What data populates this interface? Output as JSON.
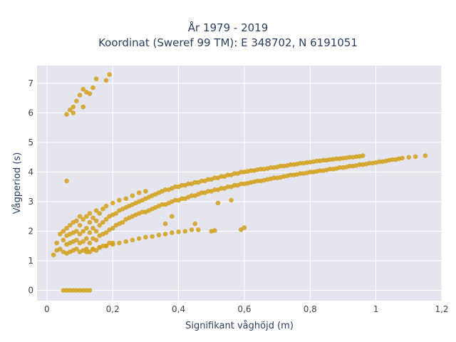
{
  "chart_data": {
    "type": "scatter",
    "title_lines": [
      "År 1979 - 2019",
      "Koordinat (Sweref 99 TM): E 348702, N 6191051"
    ],
    "xlabel": "Signifikant våghöjd (m)",
    "ylabel": "Vågperiod (s)",
    "xlim": [
      -0.03,
      1.2
    ],
    "ylim": [
      -0.35,
      7.6
    ],
    "x_ticks": [
      0,
      0.2,
      0.4,
      0.6,
      0.8,
      1,
      1.2
    ],
    "x_tick_labels": [
      "0",
      "0,2",
      "0,4",
      "0,6",
      "0,8",
      "1",
      "1,2"
    ],
    "y_ticks": [
      0,
      1,
      2,
      3,
      4,
      5,
      6,
      7
    ],
    "y_tick_labels": [
      "0",
      "1",
      "2",
      "3",
      "4",
      "5",
      "6",
      "7"
    ],
    "grid": true,
    "marker_color": "#D4A017",
    "plot_background": "#E5E5EF",
    "points": [
      [
        0.05,
        0
      ],
      [
        0.06,
        0
      ],
      [
        0.07,
        0
      ],
      [
        0.08,
        0
      ],
      [
        0.09,
        0
      ],
      [
        0.1,
        0
      ],
      [
        0.11,
        0
      ],
      [
        0.12,
        0
      ],
      [
        0.13,
        0
      ],
      [
        0.06,
        5.95
      ],
      [
        0.07,
        6.1
      ],
      [
        0.08,
        6.2
      ],
      [
        0.09,
        6.4
      ],
      [
        0.1,
        6.6
      ],
      [
        0.11,
        6.8
      ],
      [
        0.12,
        6.7
      ],
      [
        0.13,
        6.65
      ],
      [
        0.14,
        6.85
      ],
      [
        0.15,
        7.15
      ],
      [
        0.18,
        7.1
      ],
      [
        0.19,
        7.3
      ],
      [
        0.08,
        6.0
      ],
      [
        0.11,
        6.2
      ],
      [
        0.06,
        3.7
      ],
      [
        0.02,
        1.2
      ],
      [
        0.03,
        1.35
      ],
      [
        0.03,
        1.6
      ],
      [
        0.04,
        1.4
      ],
      [
        0.04,
        1.9
      ],
      [
        0.05,
        1.3
      ],
      [
        0.05,
        1.7
      ],
      [
        0.05,
        2.0
      ],
      [
        0.06,
        1.25
      ],
      [
        0.06,
        1.55
      ],
      [
        0.06,
        1.85
      ],
      [
        0.06,
        2.1
      ],
      [
        0.07,
        1.3
      ],
      [
        0.07,
        1.6
      ],
      [
        0.07,
        1.9
      ],
      [
        0.07,
        2.2
      ],
      [
        0.08,
        1.35
      ],
      [
        0.08,
        1.65
      ],
      [
        0.08,
        1.95
      ],
      [
        0.08,
        2.3
      ],
      [
        0.09,
        1.4
      ],
      [
        0.09,
        1.7
      ],
      [
        0.09,
        2.0
      ],
      [
        0.09,
        2.35
      ],
      [
        0.1,
        1.3
      ],
      [
        0.1,
        1.6
      ],
      [
        0.1,
        1.9
      ],
      [
        0.1,
        2.2
      ],
      [
        0.1,
        2.5
      ],
      [
        0.11,
        1.35
      ],
      [
        0.11,
        1.65
      ],
      [
        0.11,
        2.0
      ],
      [
        0.11,
        2.4
      ],
      [
        0.12,
        1.4
      ],
      [
        0.12,
        1.75
      ],
      [
        0.12,
        2.1
      ],
      [
        0.12,
        2.5
      ],
      [
        0.13,
        1.3
      ],
      [
        0.13,
        1.6
      ],
      [
        0.13,
        1.95
      ],
      [
        0.13,
        2.3
      ],
      [
        0.13,
        2.6
      ],
      [
        0.14,
        1.4
      ],
      [
        0.14,
        1.75
      ],
      [
        0.14,
        2.1
      ],
      [
        0.14,
        2.45
      ],
      [
        0.15,
        1.35
      ],
      [
        0.15,
        1.7
      ],
      [
        0.15,
        2.0
      ],
      [
        0.15,
        2.35
      ],
      [
        0.15,
        2.7
      ],
      [
        0.16,
        1.45
      ],
      [
        0.16,
        1.85
      ],
      [
        0.16,
        2.2
      ],
      [
        0.16,
        2.6
      ],
      [
        0.17,
        1.5
      ],
      [
        0.17,
        1.9
      ],
      [
        0.17,
        2.3
      ],
      [
        0.17,
        2.75
      ],
      [
        0.18,
        1.5
      ],
      [
        0.18,
        1.95
      ],
      [
        0.18,
        2.4
      ],
      [
        0.18,
        2.85
      ],
      [
        0.19,
        1.6
      ],
      [
        0.19,
        2.05
      ],
      [
        0.19,
        2.5
      ],
      [
        0.2,
        1.6
      ],
      [
        0.2,
        2.1
      ],
      [
        0.2,
        2.55
      ],
      [
        0.2,
        2.95
      ],
      [
        0.21,
        2.2
      ],
      [
        0.21,
        2.6
      ],
      [
        0.22,
        2.25
      ],
      [
        0.22,
        2.7
      ],
      [
        0.22,
        3.05
      ],
      [
        0.23,
        2.3
      ],
      [
        0.23,
        2.75
      ],
      [
        0.24,
        2.4
      ],
      [
        0.24,
        2.8
      ],
      [
        0.24,
        3.1
      ],
      [
        0.25,
        2.45
      ],
      [
        0.25,
        2.85
      ],
      [
        0.26,
        2.5
      ],
      [
        0.26,
        2.9
      ],
      [
        0.26,
        3.2
      ],
      [
        0.27,
        2.55
      ],
      [
        0.27,
        2.95
      ],
      [
        0.28,
        2.6
      ],
      [
        0.28,
        3.0
      ],
      [
        0.28,
        3.3
      ],
      [
        0.29,
        2.65
      ],
      [
        0.29,
        3.05
      ],
      [
        0.3,
        2.65
      ],
      [
        0.3,
        3.1
      ],
      [
        0.3,
        3.35
      ],
      [
        0.31,
        2.7
      ],
      [
        0.31,
        3.15
      ],
      [
        0.32,
        2.75
      ],
      [
        0.32,
        3.2
      ],
      [
        0.33,
        2.8
      ],
      [
        0.33,
        3.25
      ],
      [
        0.34,
        2.85
      ],
      [
        0.34,
        3.3
      ],
      [
        0.35,
        2.9
      ],
      [
        0.35,
        3.35
      ],
      [
        0.36,
        2.9
      ],
      [
        0.36,
        3.4
      ],
      [
        0.37,
        2.95
      ],
      [
        0.37,
        3.4
      ],
      [
        0.38,
        3.0
      ],
      [
        0.38,
        3.45
      ],
      [
        0.39,
        3.05
      ],
      [
        0.39,
        3.5
      ],
      [
        0.4,
        3.05
      ],
      [
        0.4,
        3.5
      ],
      [
        0.41,
        3.1
      ],
      [
        0.41,
        3.55
      ],
      [
        0.42,
        3.1
      ],
      [
        0.42,
        3.55
      ],
      [
        0.43,
        3.15
      ],
      [
        0.43,
        3.6
      ],
      [
        0.44,
        3.2
      ],
      [
        0.44,
        3.6
      ],
      [
        0.45,
        3.2
      ],
      [
        0.45,
        3.65
      ],
      [
        0.46,
        3.25
      ],
      [
        0.46,
        3.65
      ],
      [
        0.47,
        3.3
      ],
      [
        0.47,
        3.7
      ],
      [
        0.48,
        3.3
      ],
      [
        0.48,
        3.7
      ],
      [
        0.49,
        3.35
      ],
      [
        0.49,
        3.75
      ],
      [
        0.5,
        3.35
      ],
      [
        0.5,
        3.75
      ],
      [
        0.51,
        3.4
      ],
      [
        0.51,
        3.8
      ],
      [
        0.52,
        3.4
      ],
      [
        0.52,
        3.8
      ],
      [
        0.53,
        3.45
      ],
      [
        0.53,
        3.85
      ],
      [
        0.54,
        3.45
      ],
      [
        0.54,
        3.85
      ],
      [
        0.55,
        3.5
      ],
      [
        0.55,
        3.9
      ],
      [
        0.56,
        3.5
      ],
      [
        0.56,
        3.9
      ],
      [
        0.57,
        3.55
      ],
      [
        0.57,
        3.95
      ],
      [
        0.58,
        3.55
      ],
      [
        0.58,
        3.95
      ],
      [
        0.59,
        3.6
      ],
      [
        0.59,
        4.0
      ],
      [
        0.6,
        3.6
      ],
      [
        0.6,
        4.0
      ],
      [
        0.61,
        3.62
      ],
      [
        0.61,
        4.02
      ],
      [
        0.62,
        3.65
      ],
      [
        0.62,
        4.05
      ],
      [
        0.63,
        3.67
      ],
      [
        0.63,
        4.05
      ],
      [
        0.64,
        3.7
      ],
      [
        0.64,
        4.08
      ],
      [
        0.65,
        3.7
      ],
      [
        0.65,
        4.1
      ],
      [
        0.66,
        3.72
      ],
      [
        0.66,
        4.1
      ],
      [
        0.67,
        3.75
      ],
      [
        0.67,
        4.12
      ],
      [
        0.68,
        3.77
      ],
      [
        0.68,
        4.15
      ],
      [
        0.69,
        3.8
      ],
      [
        0.69,
        4.15
      ],
      [
        0.7,
        3.8
      ],
      [
        0.7,
        4.17
      ],
      [
        0.71,
        3.82
      ],
      [
        0.71,
        4.2
      ],
      [
        0.72,
        3.85
      ],
      [
        0.72,
        4.2
      ],
      [
        0.73,
        3.87
      ],
      [
        0.73,
        4.22
      ],
      [
        0.74,
        3.9
      ],
      [
        0.74,
        4.25
      ],
      [
        0.75,
        3.9
      ],
      [
        0.75,
        4.25
      ],
      [
        0.76,
        3.92
      ],
      [
        0.76,
        4.27
      ],
      [
        0.77,
        3.95
      ],
      [
        0.77,
        4.3
      ],
      [
        0.78,
        3.95
      ],
      [
        0.78,
        4.3
      ],
      [
        0.79,
        3.97
      ],
      [
        0.79,
        4.32
      ],
      [
        0.8,
        4.0
      ],
      [
        0.8,
        4.33
      ],
      [
        0.81,
        4.0
      ],
      [
        0.81,
        4.35
      ],
      [
        0.82,
        4.02
      ],
      [
        0.82,
        4.37
      ],
      [
        0.83,
        4.05
      ],
      [
        0.83,
        4.38
      ],
      [
        0.84,
        4.05
      ],
      [
        0.84,
        4.4
      ],
      [
        0.85,
        4.07
      ],
      [
        0.85,
        4.4
      ],
      [
        0.86,
        4.1
      ],
      [
        0.86,
        4.42
      ],
      [
        0.87,
        4.1
      ],
      [
        0.87,
        4.43
      ],
      [
        0.88,
        4.12
      ],
      [
        0.88,
        4.45
      ],
      [
        0.89,
        4.15
      ],
      [
        0.89,
        4.45
      ],
      [
        0.9,
        4.15
      ],
      [
        0.9,
        4.47
      ],
      [
        0.91,
        4.17
      ],
      [
        0.91,
        4.48
      ],
      [
        0.92,
        4.2
      ],
      [
        0.92,
        4.5
      ],
      [
        0.93,
        4.2
      ],
      [
        0.93,
        4.5
      ],
      [
        0.94,
        4.22
      ],
      [
        0.94,
        4.52
      ],
      [
        0.95,
        4.25
      ],
      [
        0.95,
        4.53
      ],
      [
        0.96,
        4.25
      ],
      [
        0.96,
        4.55
      ],
      [
        0.97,
        4.27
      ],
      [
        0.98,
        4.3
      ],
      [
        0.99,
        4.3
      ],
      [
        1.0,
        4.32
      ],
      [
        1.01,
        4.35
      ],
      [
        1.02,
        4.35
      ],
      [
        1.03,
        4.37
      ],
      [
        1.04,
        4.4
      ],
      [
        1.05,
        4.42
      ],
      [
        1.06,
        4.42
      ],
      [
        1.07,
        4.45
      ],
      [
        1.08,
        4.47
      ],
      [
        1.1,
        4.5
      ],
      [
        1.12,
        4.52
      ],
      [
        1.15,
        4.55
      ],
      [
        0.12,
        1.3
      ],
      [
        0.14,
        1.38
      ],
      [
        0.16,
        1.45
      ],
      [
        0.18,
        1.5
      ],
      [
        0.2,
        1.55
      ],
      [
        0.22,
        1.6
      ],
      [
        0.24,
        1.65
      ],
      [
        0.26,
        1.7
      ],
      [
        0.28,
        1.75
      ],
      [
        0.3,
        1.8
      ],
      [
        0.32,
        1.82
      ],
      [
        0.34,
        1.87
      ],
      [
        0.36,
        1.9
      ],
      [
        0.38,
        1.95
      ],
      [
        0.4,
        1.98
      ],
      [
        0.42,
        2.0
      ],
      [
        0.44,
        2.05
      ],
      [
        0.46,
        2.05
      ],
      [
        0.5,
        2.0
      ],
      [
        0.51,
        2.02
      ],
      [
        0.6,
        2.12
      ],
      [
        0.59,
        2.05
      ],
      [
        0.36,
        2.25
      ],
      [
        0.45,
        2.25
      ],
      [
        0.38,
        2.5
      ],
      [
        0.52,
        2.95
      ],
      [
        0.56,
        3.05
      ]
    ]
  }
}
